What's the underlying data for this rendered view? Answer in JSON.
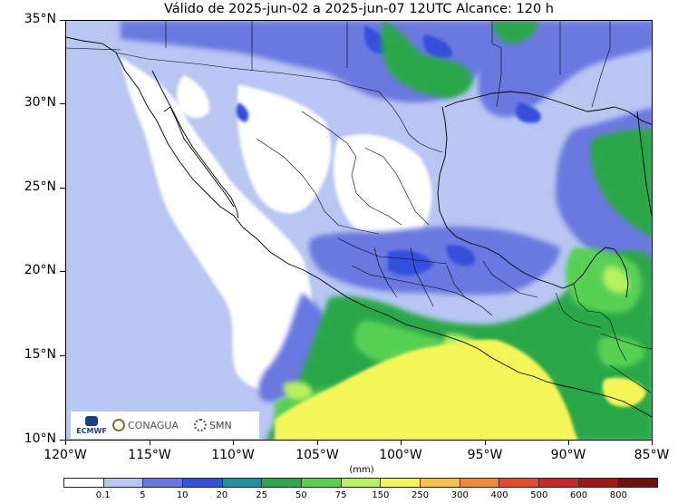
{
  "title": "Válido de 2025-jun-02 a 2025-jun-07 12UTC   Alcance: 120 h",
  "y_ticks": [
    "35°N",
    "30°N",
    "25°N",
    "20°N",
    "15°N",
    "10°N"
  ],
  "x_ticks": [
    "120°W",
    "115°W",
    "110°W",
    "105°W",
    "100°W",
    "95°W",
    "90°W",
    "85°W"
  ],
  "unit": "(mm)",
  "colorbar": {
    "labels": [
      "0.1",
      "5",
      "10",
      "20",
      "25",
      "50",
      "75",
      "150",
      "250",
      "300",
      "400",
      "500",
      "600",
      "800"
    ],
    "colors": [
      "#ffffff",
      "#b8c6f2",
      "#6b78e0",
      "#3550dc",
      "#1f8f9a",
      "#2aa84a",
      "#59d052",
      "#b8f060",
      "#f5f55a",
      "#f5c04a",
      "#ee8a3a",
      "#e8482a",
      "#c8282a",
      "#a01818",
      "#701010"
    ]
  },
  "map_data": {
    "type": "precipitation-map",
    "region": "Mexico",
    "lon_range": [
      -120,
      -85
    ],
    "lat_range": [
      10,
      35
    ]
  },
  "logos": {
    "ecmwf": "ECMWF",
    "conagua": "CONAGUA",
    "smn": "SMN"
  }
}
